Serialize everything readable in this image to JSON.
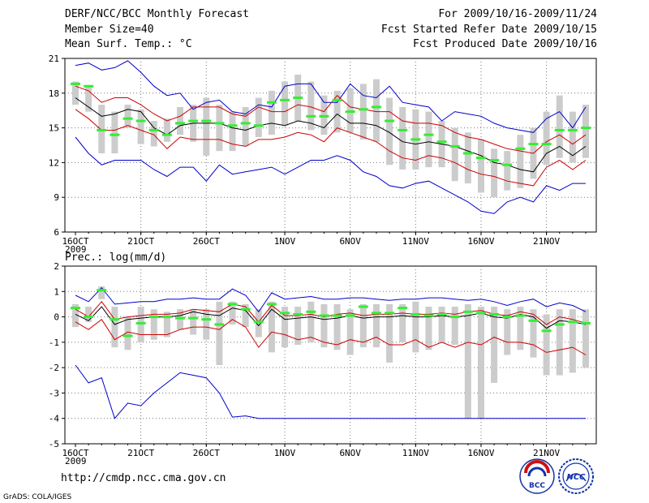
{
  "header": {
    "title_left": "DERF/NCC/BCC Monthly Forecast",
    "member_size": "Member Size=40",
    "variable": "Mean Surf. Temp.: °C",
    "title_right": "For 2009/10/16-2009/11/24",
    "fcst_started": "Fcst Started Refer Date 2009/10/15",
    "fcst_produced": "Fcst Produced Date 2009/10/16"
  },
  "footer": {
    "url": "http://cmdp.ncc.cma.gov.cn",
    "grads": "GrADS: COLA/IGES",
    "logo_left_text": "BCC",
    "logo_right_text": "NCC"
  },
  "colors": {
    "envelope": "#0000cc",
    "spread": "#cc0000",
    "mean": "#000000",
    "median": "#33ee33",
    "box": "#cccccc"
  },
  "chart_data": [
    {
      "type": "box",
      "title": "Mean Surf. Temp.: °C",
      "xlabel": "",
      "ylabel": "",
      "ylim": [
        6,
        21
      ],
      "yticks": [
        6,
        9,
        12,
        15,
        18,
        21
      ],
      "x": [
        1,
        2,
        3,
        4,
        5,
        6,
        7,
        8,
        9,
        10,
        11,
        12,
        13,
        14,
        15,
        16,
        17,
        18,
        19,
        20,
        21,
        22,
        23,
        24,
        25,
        26,
        27,
        28,
        29,
        30,
        31,
        32,
        33,
        34,
        35,
        36,
        37,
        38,
        39,
        40
      ],
      "xticks": [
        {
          "day": 1,
          "label": "16OCT",
          "year": "2009"
        },
        {
          "day": 6,
          "label": "21OCT"
        },
        {
          "day": 11,
          "label": "26OCT"
        },
        {
          "day": 17,
          "label": "1NOV"
        },
        {
          "day": 22,
          "label": "6NOV"
        },
        {
          "day": 27,
          "label": "11NOV"
        },
        {
          "day": 32,
          "label": "16NOV"
        },
        {
          "day": 37,
          "label": "21NOV"
        }
      ],
      "series": [
        {
          "name": "max",
          "values": [
            20.4,
            20.6,
            20.0,
            20.2,
            20.8,
            19.8,
            18.6,
            17.8,
            18.0,
            16.6,
            17.2,
            17.4,
            16.4,
            16.2,
            17.0,
            16.8,
            18.6,
            18.8,
            18.8,
            17.2,
            17.2,
            18.8,
            17.8,
            17.6,
            18.6,
            17.2,
            17.0,
            16.8,
            15.6,
            16.4,
            16.2,
            16.0,
            15.4,
            15.0,
            14.8,
            14.6,
            15.8,
            16.4,
            15.0,
            16.8
          ]
        },
        {
          "name": "upper",
          "values": [
            18.6,
            18.2,
            17.2,
            17.6,
            17.6,
            17.0,
            16.2,
            15.6,
            16.0,
            16.8,
            16.8,
            16.8,
            16.2,
            16.0,
            16.8,
            16.4,
            16.4,
            17.0,
            16.8,
            16.4,
            17.8,
            16.8,
            16.6,
            16.4,
            16.4,
            15.6,
            15.4,
            15.4,
            15.2,
            14.6,
            14.2,
            14.0,
            13.6,
            13.2,
            13.0,
            12.8,
            13.8,
            14.4,
            13.6,
            14.4
          ]
        },
        {
          "name": "mean",
          "values": [
            17.6,
            16.8,
            16.0,
            16.2,
            16.6,
            16.4,
            15.0,
            14.4,
            15.2,
            15.4,
            15.4,
            15.4,
            15.0,
            14.8,
            15.2,
            15.4,
            15.2,
            15.6,
            15.4,
            15.0,
            16.2,
            15.4,
            15.4,
            15.2,
            14.6,
            13.8,
            13.6,
            13.8,
            13.6,
            13.4,
            13.0,
            12.6,
            12.0,
            11.8,
            11.4,
            11.2,
            12.8,
            13.4,
            12.6,
            13.4
          ]
        },
        {
          "name": "lower",
          "values": [
            16.6,
            15.8,
            14.8,
            14.8,
            15.2,
            14.8,
            14.4,
            13.2,
            14.2,
            14.0,
            14.0,
            14.0,
            13.6,
            13.4,
            14.0,
            14.0,
            14.2,
            14.6,
            14.4,
            13.8,
            15.0,
            14.6,
            14.2,
            13.8,
            13.0,
            12.4,
            12.2,
            12.6,
            12.4,
            12.0,
            11.4,
            11.0,
            10.8,
            10.4,
            10.2,
            10.0,
            11.6,
            12.2,
            11.4,
            12.2
          ]
        },
        {
          "name": "min",
          "values": [
            14.2,
            12.8,
            11.8,
            12.2,
            12.2,
            12.2,
            11.4,
            10.8,
            11.6,
            11.6,
            10.4,
            11.8,
            11.0,
            11.2,
            11.4,
            11.6,
            11.0,
            11.6,
            12.2,
            12.2,
            12.6,
            12.2,
            11.2,
            10.8,
            10.0,
            9.8,
            10.2,
            10.4,
            9.8,
            9.2,
            8.6,
            7.8,
            7.6,
            8.6,
            9.0,
            8.6,
            10.0,
            9.6,
            10.2,
            10.2
          ]
        },
        {
          "name": "median",
          "values": [
            18.8,
            18.6,
            14.8,
            14.4,
            15.8,
            15.6,
            14.8,
            14.4,
            15.4,
            15.6,
            15.6,
            15.4,
            15.2,
            15.4,
            15.2,
            17.2,
            17.4,
            17.6,
            16.0,
            16.0,
            17.4,
            16.4,
            16.6,
            16.8,
            15.6,
            14.8,
            14.0,
            14.4,
            13.8,
            13.4,
            12.8,
            12.4,
            12.2,
            11.8,
            13.2,
            13.6,
            13.6,
            14.8,
            14.8,
            15.0
          ]
        },
        {
          "name": "box_top",
          "values": [
            19.0,
            18.6,
            17.0,
            16.4,
            17.0,
            16.6,
            15.6,
            15.8,
            16.8,
            17.0,
            17.6,
            17.0,
            16.4,
            16.8,
            17.6,
            18.2,
            19.0,
            19.6,
            19.0,
            17.8,
            18.2,
            18.4,
            18.8,
            19.2,
            17.6,
            16.8,
            16.6,
            16.4,
            15.6,
            15.0,
            14.6,
            14.0,
            13.2,
            13.0,
            14.4,
            15.0,
            16.4,
            17.8,
            16.4,
            17.0
          ]
        },
        {
          "name": "box_bottom",
          "values": [
            17.0,
            16.4,
            12.8,
            12.8,
            15.0,
            13.6,
            13.4,
            13.8,
            14.4,
            13.8,
            12.6,
            13.0,
            13.0,
            13.4,
            14.2,
            14.4,
            15.2,
            15.6,
            14.8,
            14.4,
            14.6,
            14.6,
            14.0,
            13.8,
            11.8,
            11.4,
            11.4,
            11.6,
            11.6,
            10.4,
            10.2,
            9.4,
            9.0,
            9.6,
            9.8,
            10.6,
            11.8,
            12.4,
            12.0,
            12.4
          ]
        }
      ]
    },
    {
      "type": "box",
      "title": "Prec.: log(mm/d)",
      "xlabel": "",
      "ylabel": "",
      "ylim": [
        -5,
        2
      ],
      "yticks": [
        -5,
        -4,
        -3,
        -2,
        -1,
        0,
        1,
        2
      ],
      "x": [
        1,
        2,
        3,
        4,
        5,
        6,
        7,
        8,
        9,
        10,
        11,
        12,
        13,
        14,
        15,
        16,
        17,
        18,
        19,
        20,
        21,
        22,
        23,
        24,
        25,
        26,
        27,
        28,
        29,
        30,
        31,
        32,
        33,
        34,
        35,
        36,
        37,
        38,
        39,
        40
      ],
      "xticks": [
        {
          "day": 1,
          "label": "16OCT",
          "year": "2009"
        },
        {
          "day": 6,
          "label": "21OCT"
        },
        {
          "day": 11,
          "label": "26OCT"
        },
        {
          "day": 17,
          "label": "1NOV"
        },
        {
          "day": 22,
          "label": "6NOV"
        },
        {
          "day": 27,
          "label": "11NOV"
        },
        {
          "day": 32,
          "label": "16NOV"
        },
        {
          "day": 37,
          "label": "21NOV"
        }
      ],
      "series": [
        {
          "name": "max",
          "values": [
            0.85,
            0.6,
            1.15,
            0.5,
            0.55,
            0.6,
            0.6,
            0.7,
            0.7,
            0.75,
            0.7,
            0.7,
            1.1,
            0.85,
            0.2,
            0.95,
            0.7,
            0.75,
            0.8,
            0.7,
            0.7,
            0.75,
            0.75,
            0.7,
            0.65,
            0.7,
            0.7,
            0.75,
            0.75,
            0.7,
            0.65,
            0.7,
            0.6,
            0.45,
            0.6,
            0.7,
            0.4,
            0.55,
            0.45,
            0.2
          ]
        },
        {
          "name": "upper",
          "values": [
            0.3,
            0.0,
            0.6,
            -0.1,
            0.0,
            0.05,
            0.1,
            0.1,
            0.15,
            0.3,
            0.25,
            0.2,
            0.5,
            0.4,
            -0.2,
            0.45,
            0.05,
            0.05,
            0.1,
            0.0,
            0.1,
            0.15,
            0.05,
            0.1,
            0.1,
            0.15,
            0.1,
            0.1,
            0.15,
            0.1,
            0.2,
            0.25,
            0.1,
            0.05,
            0.2,
            0.1,
            -0.3,
            0.0,
            -0.1,
            -0.25
          ]
        },
        {
          "name": "mean",
          "values": [
            0.1,
            -0.15,
            0.4,
            -0.3,
            -0.1,
            -0.05,
            0.0,
            0.0,
            0.05,
            0.2,
            0.1,
            0.05,
            0.35,
            0.25,
            -0.35,
            0.3,
            -0.1,
            -0.05,
            0.0,
            -0.1,
            -0.05,
            0.05,
            -0.05,
            0.0,
            0.0,
            0.05,
            0.0,
            0.0,
            0.05,
            0.0,
            0.05,
            0.15,
            0.0,
            -0.05,
            0.1,
            0.0,
            -0.45,
            -0.15,
            -0.2,
            -0.3
          ]
        },
        {
          "name": "lower",
          "values": [
            -0.2,
            -0.5,
            -0.1,
            -0.9,
            -0.6,
            -0.7,
            -0.7,
            -0.7,
            -0.5,
            -0.4,
            -0.4,
            -0.5,
            -0.1,
            -0.4,
            -1.2,
            -0.6,
            -0.7,
            -0.9,
            -0.8,
            -1.0,
            -1.1,
            -0.9,
            -1.0,
            -0.8,
            -1.1,
            -1.1,
            -0.9,
            -1.2,
            -1.0,
            -1.2,
            -1.0,
            -1.1,
            -0.8,
            -1.0,
            -1.0,
            -1.1,
            -1.4,
            -1.3,
            -1.2,
            -1.5
          ]
        },
        {
          "name": "min",
          "values": [
            -1.9,
            -2.6,
            -2.4,
            -4.0,
            -3.4,
            -3.5,
            -3.0,
            -2.6,
            -2.2,
            -2.3,
            -2.4,
            -3.0,
            -3.95,
            -3.9,
            -4.0,
            -4.0,
            -4.0,
            -4.0,
            -4.0,
            -4.0,
            -4.0,
            -4.0,
            -4.0,
            -4.0,
            -4.0,
            -4.0,
            -4.0,
            -4.0,
            -4.0,
            -4.0,
            -4.0,
            -4.0,
            -4.0,
            -4.0,
            -4.0,
            -4.0,
            -4.0,
            -4.0,
            -4.0,
            -4.0
          ]
        },
        {
          "name": "median",
          "values": [
            0.35,
            0.0,
            1.05,
            -0.1,
            -0.75,
            -0.25,
            0.0,
            0.0,
            -0.05,
            -0.05,
            -0.1,
            -0.3,
            0.5,
            0.3,
            -0.2,
            0.5,
            0.15,
            0.1,
            0.2,
            0.05,
            0.05,
            0.05,
            0.4,
            0.15,
            0.15,
            0.35,
            0.1,
            0.05,
            0.1,
            0.0,
            0.2,
            0.15,
            0.1,
            0.0,
            0.05,
            -0.15,
            -0.55,
            -0.3,
            -0.2,
            -0.25
          ]
        },
        {
          "name": "box_top",
          "values": [
            0.5,
            0.4,
            1.2,
            0.4,
            0.0,
            0.4,
            0.3,
            0.2,
            0.3,
            0.3,
            0.3,
            0.6,
            0.6,
            0.5,
            0.3,
            0.6,
            0.4,
            0.4,
            0.6,
            0.5,
            0.5,
            0.3,
            0.5,
            0.5,
            0.5,
            0.5,
            0.6,
            0.4,
            0.4,
            0.4,
            0.5,
            0.4,
            0.4,
            0.3,
            0.4,
            0.3,
            0.1,
            0.3,
            0.3,
            0.3
          ]
        },
        {
          "name": "box_bottom",
          "values": [
            -0.4,
            -0.2,
            0.7,
            -1.2,
            -1.3,
            -1.0,
            -0.9,
            -0.8,
            -0.5,
            -0.7,
            -0.9,
            -1.9,
            -0.3,
            -0.4,
            -0.8,
            -1.4,
            -1.2,
            -1.1,
            -1.0,
            -1.2,
            -1.3,
            -1.5,
            -1.2,
            -1.2,
            -1.8,
            -1.0,
            -1.4,
            -1.3,
            -1.0,
            -1.1,
            -4.0,
            -4.0,
            -2.6,
            -1.5,
            -1.3,
            -1.6,
            -2.3,
            -2.3,
            -2.2,
            -2.0
          ]
        }
      ]
    }
  ]
}
